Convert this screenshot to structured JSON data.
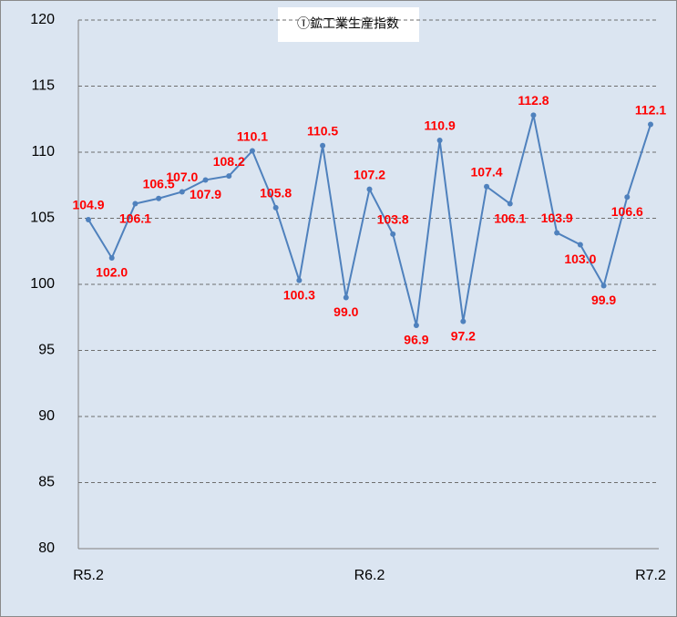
{
  "chart_data": {
    "type": "line",
    "title": "①鉱工業生産指数",
    "categories": [
      "R5.2",
      null,
      null,
      null,
      null,
      null,
      null,
      null,
      null,
      null,
      null,
      null,
      "R6.2",
      null,
      null,
      null,
      null,
      null,
      null,
      null,
      null,
      null,
      null,
      null,
      "R7.2"
    ],
    "values": [
      104.9,
      102.0,
      106.1,
      106.5,
      107.0,
      107.9,
      108.2,
      110.1,
      105.8,
      100.3,
      110.5,
      99.0,
      107.2,
      103.8,
      96.9,
      110.9,
      97.2,
      107.4,
      106.1,
      112.8,
      103.9,
      103.0,
      99.9,
      106.6,
      112.1
    ],
    "value_labels": [
      "104.9",
      "102.0",
      "106.1",
      "106.5",
      "107.0",
      "107.9",
      "108.2",
      "110.1",
      "105.8",
      "100.3",
      "110.5",
      "99.0",
      "107.2",
      "103.8",
      "96.9",
      "110.9",
      "97.2",
      "107.4",
      "106.1",
      "112.8",
      "103.9",
      "103.0",
      "99.9",
      "106.6",
      "112.1"
    ],
    "color": "#4f81bd",
    "label_color": "#ff0000",
    "ylim": [
      80,
      120
    ],
    "yticks": [
      80,
      85,
      90,
      95,
      100,
      105,
      110,
      115,
      120
    ],
    "grid": true
  }
}
